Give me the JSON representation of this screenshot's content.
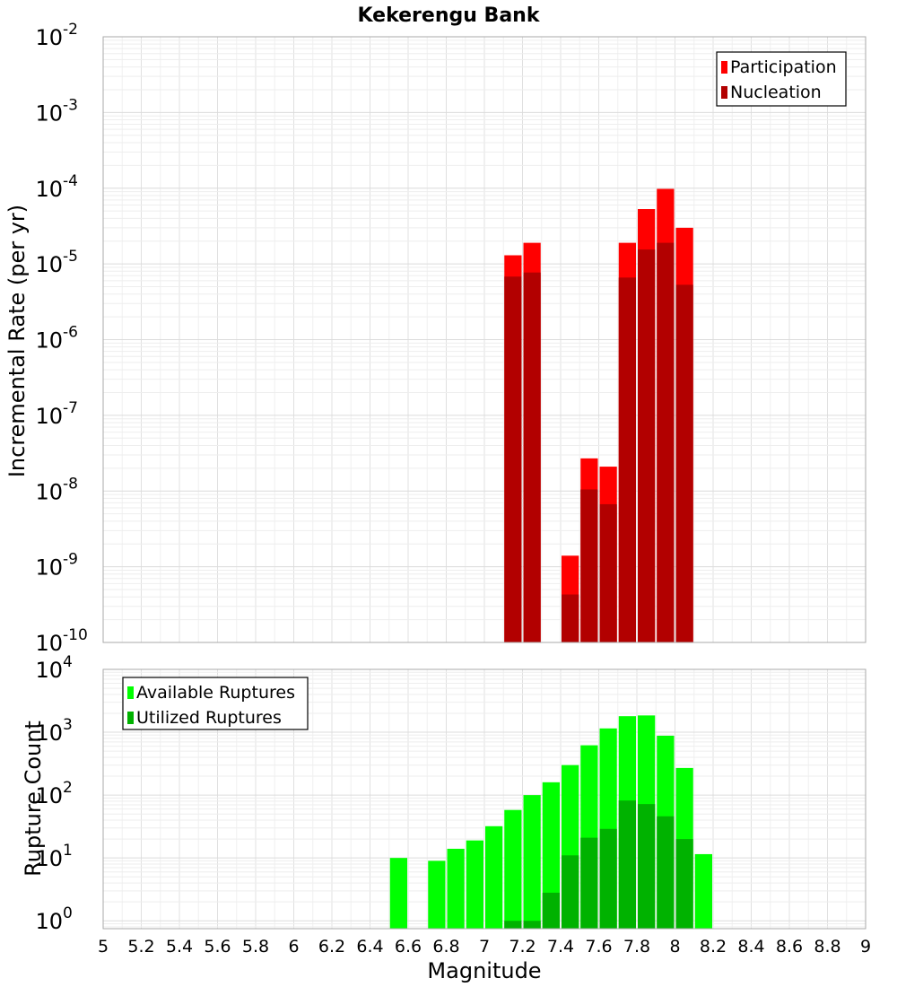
{
  "chart_data": [
    {
      "type": "bar",
      "title": "Kekerengu Bank",
      "xlabel": "",
      "ylabel": "Incremental Rate (per yr)",
      "yscale": "log",
      "xlim": [
        5,
        9
      ],
      "ylim": [
        1e-10,
        0.01
      ],
      "ytick_exponents": [
        -10,
        -9,
        -8,
        -7,
        -6,
        -5,
        -4,
        -3,
        -2
      ],
      "ytick_base": "10",
      "bar_width": 0.1,
      "grid": true,
      "legend_position": "top-right",
      "series": [
        {
          "name": "Participation",
          "color": "#ff0000",
          "x": [
            7.15,
            7.25,
            7.45,
            7.55,
            7.65,
            7.75,
            7.85,
            7.95,
            8.05
          ],
          "values": [
            1.3e-05,
            1.9e-05,
            1.4e-09,
            2.7e-08,
            2.1e-08,
            1.9e-05,
            5.3e-05,
            9.8e-05,
            3e-05
          ]
        },
        {
          "name": "Nucleation",
          "color": "#b20000",
          "x": [
            7.15,
            7.25,
            7.45,
            7.55,
            7.65,
            7.75,
            7.85,
            7.95,
            8.05
          ],
          "values": [
            6.8e-06,
            7.7e-06,
            4.3e-10,
            1.05e-08,
            6.7e-09,
            6.6e-06,
            1.55e-05,
            1.9e-05,
            5.3e-06
          ]
        }
      ]
    },
    {
      "type": "bar",
      "title": "",
      "xlabel": "Magnitude",
      "ylabel": "Rupture Count",
      "yscale": "log",
      "xlim": [
        5,
        9
      ],
      "ylim": [
        0.75,
        10000
      ],
      "ytick_exponents": [
        0,
        1,
        2,
        3,
        4
      ],
      "ytick_base": "10",
      "xticks": [
        "5",
        "5.2",
        "5.4",
        "5.6",
        "5.8",
        "6",
        "6.2",
        "6.4",
        "6.6",
        "6.8",
        "7",
        "7.2",
        "7.4",
        "7.6",
        "7.8",
        "8",
        "8.2",
        "8.4",
        "8.6",
        "8.8",
        "9"
      ],
      "bar_width": 0.1,
      "grid": true,
      "legend_position": "top-left",
      "series": [
        {
          "name": "Available Ruptures",
          "color": "#00ff00",
          "x": [
            6.55,
            6.75,
            6.85,
            6.95,
            7.05,
            7.15,
            7.25,
            7.35,
            7.45,
            7.55,
            7.65,
            7.75,
            7.85,
            7.95,
            8.05,
            8.15
          ],
          "values": [
            10,
            9,
            14,
            19,
            32,
            58,
            100,
            160,
            300,
            620,
            1150,
            1800,
            1850,
            880,
            270,
            11.5
          ]
        },
        {
          "name": "Utilized Ruptures",
          "color": "#00b200",
          "x": [
            7.15,
            7.25,
            7.35,
            7.45,
            7.55,
            7.65,
            7.75,
            7.85,
            7.95,
            8.05
          ],
          "values": [
            1,
            1,
            2.8,
            11,
            21,
            29,
            82,
            72,
            46,
            20
          ]
        }
      ]
    }
  ]
}
